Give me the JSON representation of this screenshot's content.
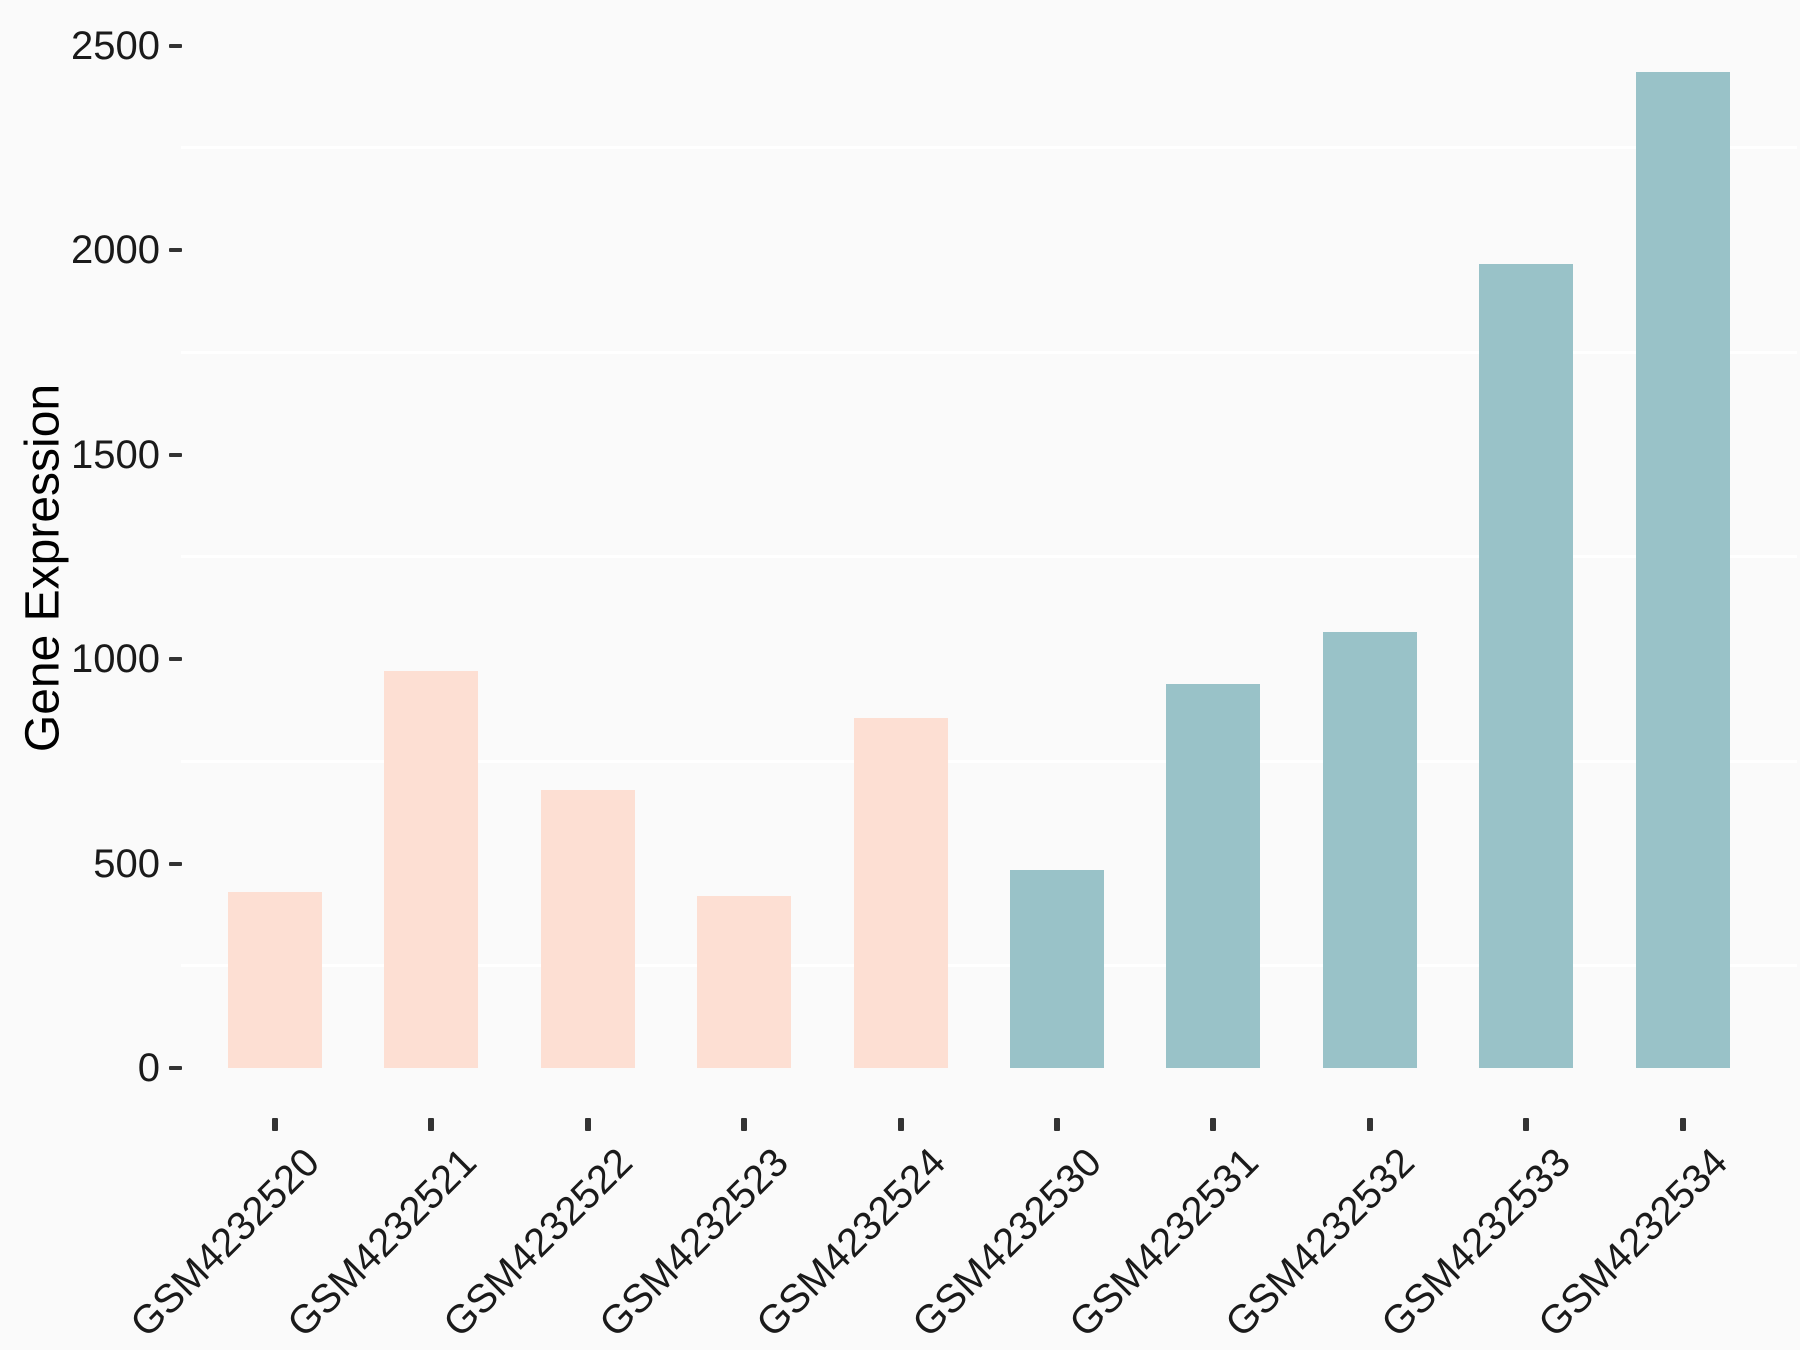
{
  "chart_data": {
    "type": "bar",
    "title": "",
    "xlabel": "",
    "ylabel": "Gene Expression",
    "categories": [
      "GSM4232520",
      "GSM4232521",
      "GSM4232522",
      "GSM4232523",
      "GSM4232524",
      "GSM4232530",
      "GSM4232531",
      "GSM4232532",
      "GSM4232533",
      "GSM4232534"
    ],
    "values": [
      430,
      970,
      680,
      420,
      855,
      485,
      940,
      1065,
      1965,
      2435
    ],
    "bar_colors": [
      "#FDDFD3",
      "#FDDFD3",
      "#FDDFD3",
      "#FDDFD3",
      "#FDDFD3",
      "#99C2C8",
      "#99C2C8",
      "#99C2C8",
      "#99C2C8",
      "#99C2C8"
    ],
    "yticks": [
      0,
      500,
      1000,
      1500,
      2000,
      2500
    ],
    "minor_gridlines": [
      250,
      750,
      1250,
      1750,
      2250
    ],
    "ylim": [
      0,
      2560
    ],
    "grid": "minor-horizontal-only",
    "legend": "none",
    "colors": {
      "background": "#FAFAFA",
      "gridline": "#FFFFFF",
      "tick_mark": "#333333",
      "tick_label": "#1A1A1A",
      "axis_title": "#000000",
      "group_low": "#FDDFD3",
      "group_high": "#99C2C8"
    }
  }
}
